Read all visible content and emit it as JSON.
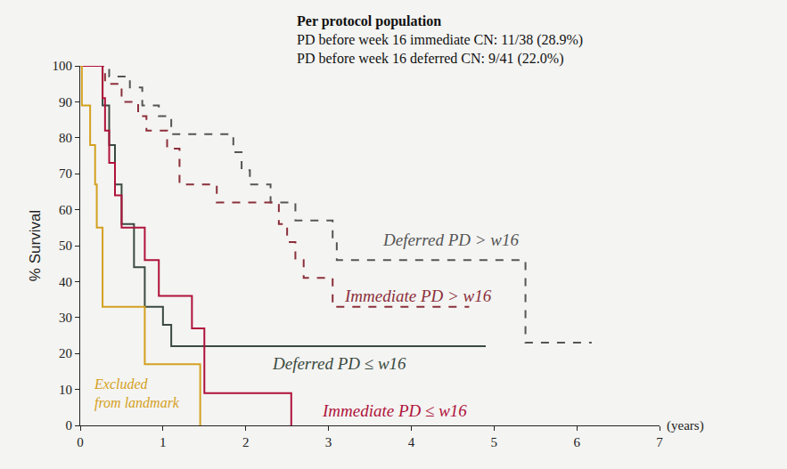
{
  "chart_data": {
    "type": "line",
    "title": "Per protocol population",
    "annotations": [
      "PD before week 16 immediate CN: 11/38 (28.9%)",
      "PD before week 16 deferred CN: 9/41 (22.0%)"
    ],
    "x_label": "(years)",
    "y_label": "% Survival",
    "xlim": [
      0,
      7
    ],
    "xticks": [
      0,
      1,
      2,
      3,
      4,
      5,
      6,
      7
    ],
    "ylim": [
      0,
      100
    ],
    "yticks": [
      0,
      10,
      20,
      30,
      40,
      50,
      60,
      70,
      80,
      90,
      100
    ],
    "grid": false,
    "series": [
      {
        "name": "Deferred PD > w16",
        "color": "#555555",
        "line_style": "dashed",
        "x": [
          0,
          0.35,
          0.6,
          0.75,
          0.95,
          1.1,
          1.85,
          1.95,
          2.05,
          2.3,
          2.6,
          3.05,
          3.1,
          5.38,
          6.18
        ],
        "values": [
          100,
          97,
          94,
          89,
          86,
          81,
          76,
          71,
          67,
          62,
          57,
          51,
          46,
          23,
          23
        ]
      },
      {
        "name": "Immediate PD > w16",
        "color": "#8b2f3a",
        "line_style": "dashed",
        "x": [
          0,
          0.3,
          0.5,
          0.7,
          0.8,
          1.05,
          1.2,
          1.65,
          2.4,
          2.5,
          2.6,
          2.7,
          3.05,
          4.7
        ],
        "values": [
          100,
          95,
          90,
          86,
          82,
          77,
          67,
          62,
          56,
          51,
          46,
          41,
          33,
          33
        ]
      },
      {
        "name": "Deferred PD ≤ w16",
        "color": "#3a4a40",
        "line_style": "solid",
        "x": [
          0,
          0.27,
          0.35,
          0.42,
          0.5,
          0.65,
          0.78,
          1.0,
          1.1,
          4.9
        ],
        "values": [
          100,
          89,
          78,
          67,
          56,
          44,
          33,
          28,
          22,
          22
        ]
      },
      {
        "name": "Immediate PD ≤ w16",
        "color": "#b0123a",
        "line_style": "solid",
        "x": [
          0,
          0.27,
          0.3,
          0.35,
          0.42,
          0.5,
          0.78,
          0.95,
          1.35,
          1.5,
          2.55
        ],
        "values": [
          100,
          91,
          82,
          73,
          64,
          55,
          46,
          36,
          27,
          9,
          0
        ]
      },
      {
        "name": "Excluded from landmark",
        "color": "#d4a020",
        "line_style": "solid",
        "x": [
          0,
          0.02,
          0.12,
          0.18,
          0.2,
          0.27,
          0.78,
          1.45
        ],
        "values": [
          100,
          89,
          78,
          67,
          55,
          33,
          17,
          0
        ]
      }
    ]
  }
}
